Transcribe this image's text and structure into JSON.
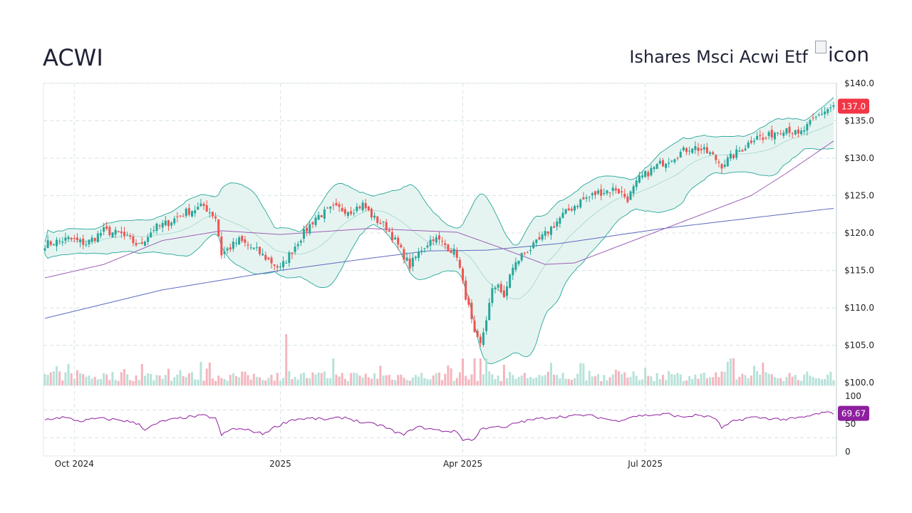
{
  "header": {
    "ticker": "ACWI",
    "company_name": "Ishares Msci Acwi Etf",
    "logo_alt": "icon"
  },
  "chart_data": {
    "type": "candlestick",
    "price_axis": {
      "ticks": [
        "$140.0",
        "$135.0",
        "$130.0",
        "$125.0",
        "$120.0",
        "$115.0",
        "$110.0",
        "$105.0",
        "$100.0"
      ],
      "ylim": [
        100,
        140
      ]
    },
    "rsi_axis": {
      "ticks": [
        "100",
        "50",
        "0"
      ],
      "ylim": [
        0,
        100
      ]
    },
    "x_labels": [
      "Oct 2024",
      "2025",
      "Apr 2025",
      "Jul 2025"
    ],
    "last_price_label": "137.0",
    "last_rsi_label": "69.67",
    "colors": {
      "up": "#26a69a",
      "down": "#ef5350",
      "band_fill": "#e6f4f1",
      "band_line": "#26a69a",
      "sma_slow": "#5c6bc0",
      "sma_mid": "#9c5fb5",
      "rsi": "#8e1f9e",
      "price_badge": "#f23645",
      "rsi_badge": "#8e1f9e"
    },
    "close_anchors": [
      [
        0,
        118.5
      ],
      [
        8,
        119.2
      ],
      [
        14,
        118.6
      ],
      [
        20,
        120.3
      ],
      [
        26,
        119.8
      ],
      [
        32,
        118.3
      ],
      [
        37,
        120.6
      ],
      [
        42,
        121.4
      ],
      [
        48,
        122.8
      ],
      [
        54,
        123.6
      ],
      [
        58,
        122.1
      ],
      [
        60,
        117.2
      ],
      [
        66,
        119.0
      ],
      [
        72,
        117.6
      ],
      [
        76,
        116.4
      ],
      [
        80,
        115.2
      ],
      [
        86,
        118.9
      ],
      [
        92,
        122.1
      ],
      [
        98,
        123.3
      ],
      [
        104,
        123.0
      ],
      [
        108,
        123.8
      ],
      [
        112,
        121.9
      ],
      [
        116,
        120.8
      ],
      [
        120,
        118.3
      ],
      [
        124,
        115.6
      ],
      [
        128,
        117.9
      ],
      [
        132,
        119.4
      ],
      [
        136,
        118.4
      ],
      [
        140,
        117.1
      ],
      [
        142,
        113.2
      ],
      [
        144,
        110.0
      ],
      [
        146,
        106.2
      ],
      [
        148,
        105.0
      ],
      [
        150,
        108.6
      ],
      [
        152,
        112.2
      ],
      [
        154,
        113.4
      ],
      [
        156,
        111.0
      ],
      [
        158,
        114.6
      ],
      [
        162,
        117.1
      ],
      [
        166,
        118.2
      ],
      [
        170,
        119.8
      ],
      [
        176,
        122.4
      ],
      [
        182,
        124.3
      ],
      [
        188,
        125.4
      ],
      [
        194,
        125.9
      ],
      [
        198,
        124.6
      ],
      [
        202,
        127.2
      ],
      [
        208,
        129.0
      ],
      [
        214,
        130.3
      ],
      [
        220,
        131.6
      ],
      [
        226,
        130.6
      ],
      [
        230,
        129.1
      ],
      [
        234,
        130.4
      ],
      [
        238,
        131.6
      ],
      [
        242,
        133.2
      ],
      [
        244,
        132.4
      ],
      [
        248,
        133.5
      ],
      [
        252,
        134.1
      ],
      [
        256,
        133.0
      ],
      [
        260,
        134.6
      ],
      [
        264,
        136.1
      ],
      [
        268,
        137.0
      ]
    ],
    "sma_slow_anchors": [
      [
        0,
        108.6
      ],
      [
        40,
        112.4
      ],
      [
        80,
        115.0
      ],
      [
        110,
        116.6
      ],
      [
        130,
        117.6
      ],
      [
        150,
        117.7
      ],
      [
        175,
        118.6
      ],
      [
        210,
        120.6
      ],
      [
        240,
        122.0
      ],
      [
        268,
        123.3
      ]
    ],
    "sma_mid_anchors": [
      [
        0,
        114.0
      ],
      [
        20,
        115.8
      ],
      [
        40,
        119.0
      ],
      [
        60,
        120.3
      ],
      [
        80,
        119.8
      ],
      [
        110,
        120.6
      ],
      [
        140,
        120.1
      ],
      [
        155,
        118.0
      ],
      [
        170,
        115.8
      ],
      [
        180,
        116.0
      ],
      [
        200,
        119.0
      ],
      [
        220,
        122.0
      ],
      [
        240,
        125.0
      ],
      [
        252,
        128.0
      ],
      [
        268,
        132.3
      ]
    ],
    "rsi_anchors": [
      [
        0,
        58
      ],
      [
        6,
        62
      ],
      [
        12,
        55
      ],
      [
        18,
        60
      ],
      [
        26,
        57
      ],
      [
        32,
        50
      ],
      [
        34,
        40
      ],
      [
        40,
        55
      ],
      [
        48,
        62
      ],
      [
        54,
        65
      ],
      [
        58,
        60
      ],
      [
        60,
        30
      ],
      [
        64,
        42
      ],
      [
        70,
        38
      ],
      [
        74,
        32
      ],
      [
        78,
        44
      ],
      [
        84,
        58
      ],
      [
        90,
        60
      ],
      [
        96,
        58
      ],
      [
        102,
        62
      ],
      [
        108,
        52
      ],
      [
        114,
        48
      ],
      [
        118,
        38
      ],
      [
        122,
        30
      ],
      [
        126,
        45
      ],
      [
        130,
        42
      ],
      [
        134,
        38
      ],
      [
        140,
        36
      ],
      [
        142,
        22
      ],
      [
        146,
        22
      ],
      [
        148,
        40
      ],
      [
        152,
        46
      ],
      [
        156,
        42
      ],
      [
        160,
        52
      ],
      [
        166,
        58
      ],
      [
        172,
        62
      ],
      [
        178,
        64
      ],
      [
        184,
        66
      ],
      [
        190,
        60
      ],
      [
        194,
        55
      ],
      [
        200,
        64
      ],
      [
        206,
        66
      ],
      [
        212,
        68
      ],
      [
        216,
        62
      ],
      [
        222,
        66
      ],
      [
        228,
        60
      ],
      [
        230,
        42
      ],
      [
        234,
        55
      ],
      [
        240,
        62
      ],
      [
        246,
        60
      ],
      [
        252,
        58
      ],
      [
        258,
        62
      ],
      [
        264,
        70
      ],
      [
        268,
        69.67
      ]
    ]
  }
}
